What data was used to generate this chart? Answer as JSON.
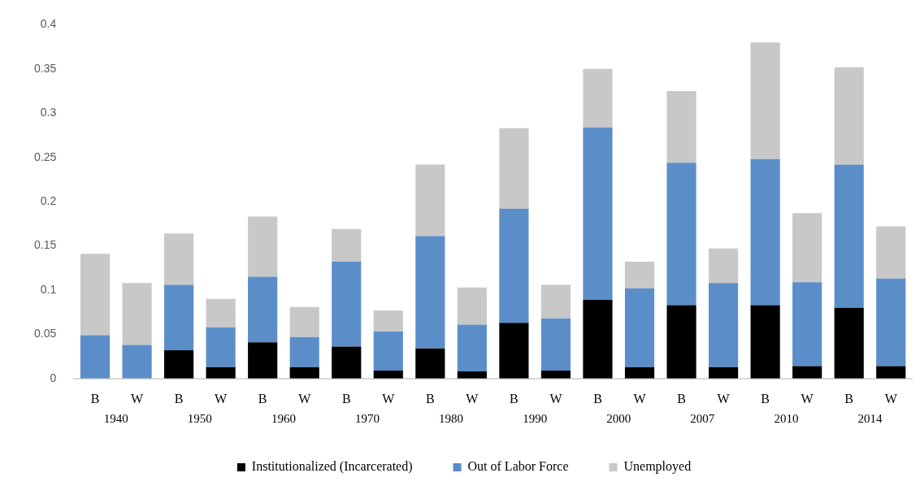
{
  "chart_data": {
    "type": "bar",
    "stacked": true,
    "categories": [
      "B",
      "W",
      "B",
      "W",
      "B",
      "W",
      "B",
      "W",
      "B",
      "W",
      "B",
      "W",
      "B",
      "W",
      "B",
      "W",
      "B",
      "W",
      "B",
      "W"
    ],
    "annotations": [
      "1940",
      "1950",
      "1960",
      "1970",
      "1980",
      "1990",
      "2000",
      "2007",
      "2010",
      "2014"
    ],
    "series": [
      {
        "name": "Institutionalized (Incarcerated)",
        "color": "#000000",
        "values": [
          0,
          0,
          0.032,
          0.013,
          0.041,
          0.013,
          0.036,
          0.009,
          0.034,
          0.008,
          0.063,
          0.009,
          0.089,
          0.013,
          0.083,
          0.013,
          0.083,
          0.014,
          0.08,
          0.014
        ]
      },
      {
        "name": "Out of Labor Force",
        "color": "#5b8ec8",
        "values": [
          0.049,
          0.038,
          0.074,
          0.045,
          0.074,
          0.034,
          0.096,
          0.044,
          0.127,
          0.053,
          0.129,
          0.059,
          0.195,
          0.089,
          0.161,
          0.095,
          0.165,
          0.095,
          0.162,
          0.099
        ]
      },
      {
        "name": "Unemployed",
        "color": "#c8c8c8",
        "values": [
          0.092,
          0.07,
          0.058,
          0.032,
          0.068,
          0.034,
          0.037,
          0.024,
          0.081,
          0.042,
          0.091,
          0.038,
          0.066,
          0.03,
          0.081,
          0.039,
          0.132,
          0.078,
          0.11,
          0.059
        ]
      }
    ],
    "ylim": [
      0,
      0.4
    ],
    "yticks": [
      0,
      0.05,
      0.1,
      0.15,
      0.2,
      0.25,
      0.3,
      0.35,
      0.4
    ],
    "grid": false,
    "legend": "bottom"
  }
}
